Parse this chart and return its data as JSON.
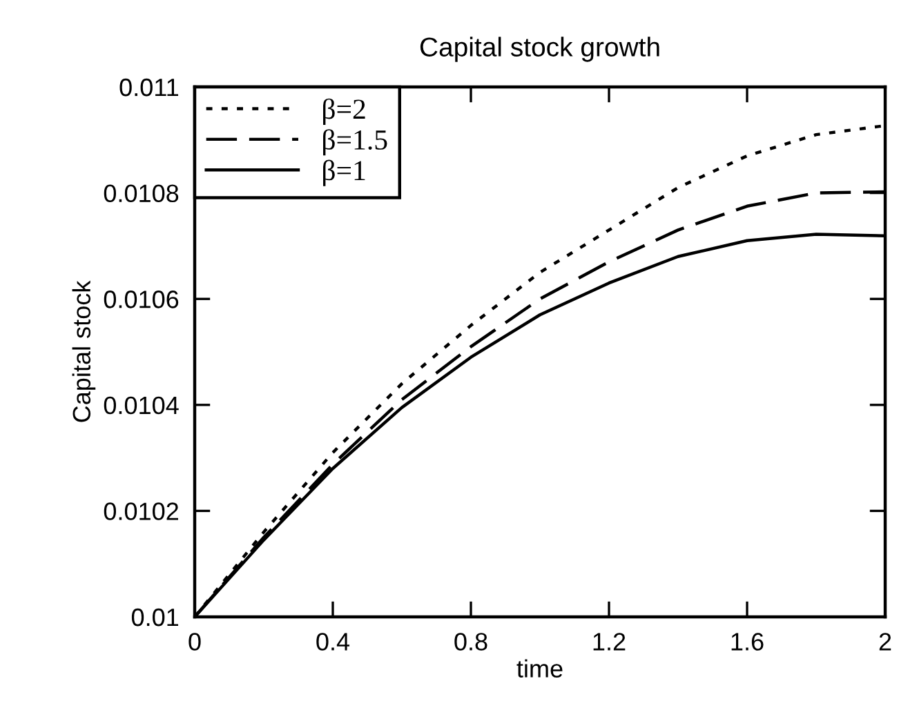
{
  "chart_data": {
    "type": "line",
    "title": "Capital stock growth",
    "xlabel": "time",
    "ylabel": "Capital stock",
    "x": [
      0,
      0.2,
      0.4,
      0.6,
      0.8,
      1.0,
      1.2,
      1.4,
      1.6,
      1.8,
      2.0
    ],
    "series": [
      {
        "name": "β=2",
        "color": "#000000",
        "line_style": "dotted",
        "values": [
          0.01,
          0.01016,
          0.01031,
          0.01044,
          0.01055,
          0.01065,
          0.01073,
          0.01081,
          0.01087,
          0.01091,
          0.010927
        ]
      },
      {
        "name": "β=1.5",
        "color": "#000000",
        "line_style": "dashed",
        "values": [
          0.01,
          0.01015,
          0.010288,
          0.01041,
          0.01051,
          0.0106,
          0.01067,
          0.01073,
          0.010775,
          0.0108,
          0.010802
        ]
      },
      {
        "name": "β=1",
        "color": "#000000",
        "line_style": "solid",
        "values": [
          0.01,
          0.010145,
          0.01028,
          0.010395,
          0.01049,
          0.01057,
          0.01063,
          0.01068,
          0.01071,
          0.010722,
          0.010719
        ]
      }
    ],
    "xlim": [
      0,
      2
    ],
    "ylim": [
      0.01,
      0.011
    ],
    "xticks": [
      0,
      0.4,
      0.8,
      1.2,
      1.6,
      2
    ],
    "yticks": [
      0.01,
      0.0102,
      0.0104,
      0.0106,
      0.0108,
      0.011
    ],
    "grid": false,
    "legend": "top left",
    "marker": "none"
  }
}
